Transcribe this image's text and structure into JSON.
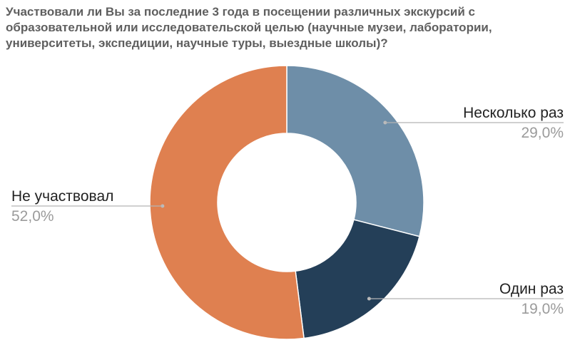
{
  "chart_data": {
    "type": "pie",
    "title_lines": [
      "Участвовали ли Вы за последние 3 года в посещении различных экскурсий с",
      "образовательной или исследовательской целью (научные музеи, лаборатории,",
      "университеты, экспедиции, научные туры, выездные школы)?"
    ],
    "donut": true,
    "slices": [
      {
        "label": "Несколько раз",
        "value": 29.0,
        "display": "29,0%",
        "color": "#6e8ea8"
      },
      {
        "label": "Один раз",
        "value": 19.0,
        "display": "19,0%",
        "color": "#243f58"
      },
      {
        "label": "Не участвовал",
        "value": 52.0,
        "display": "52,0%",
        "color": "#df8050"
      }
    ],
    "legend": "none"
  }
}
